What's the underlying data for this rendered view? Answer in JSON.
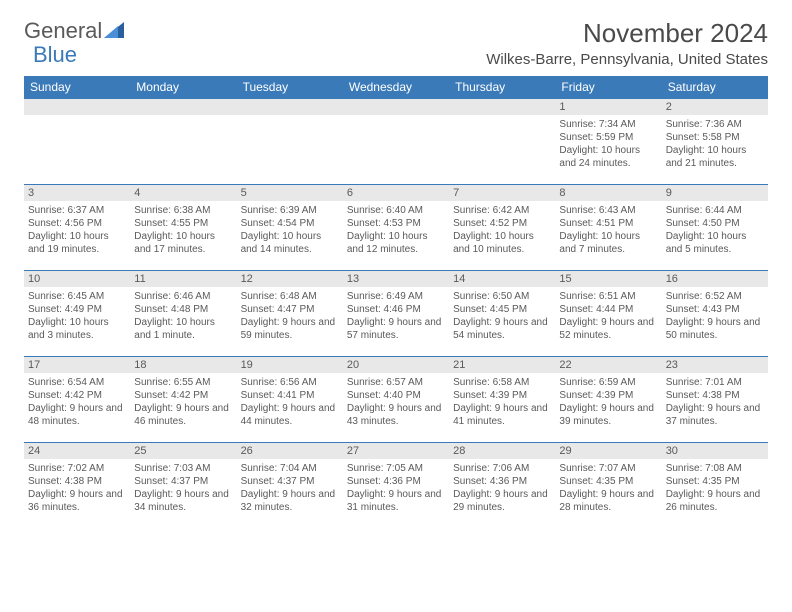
{
  "logo": {
    "text1": "General",
    "text2": "Blue"
  },
  "title": "November 2024",
  "location": "Wilkes-Barre, Pennsylvania, United States",
  "colors": {
    "header_bg": "#3b7ab8",
    "header_text": "#ffffff",
    "daynum_bg": "#e8e8e8",
    "border": "#3b7ab8",
    "text": "#5a5a5a",
    "logo_blue": "#3b7ab8"
  },
  "day_headers": [
    "Sunday",
    "Monday",
    "Tuesday",
    "Wednesday",
    "Thursday",
    "Friday",
    "Saturday"
  ],
  "weeks": [
    [
      {
        "day": "",
        "sunrise": "",
        "sunset": "",
        "daylight": ""
      },
      {
        "day": "",
        "sunrise": "",
        "sunset": "",
        "daylight": ""
      },
      {
        "day": "",
        "sunrise": "",
        "sunset": "",
        "daylight": ""
      },
      {
        "day": "",
        "sunrise": "",
        "sunset": "",
        "daylight": ""
      },
      {
        "day": "",
        "sunrise": "",
        "sunset": "",
        "daylight": ""
      },
      {
        "day": "1",
        "sunrise": "Sunrise: 7:34 AM",
        "sunset": "Sunset: 5:59 PM",
        "daylight": "Daylight: 10 hours and 24 minutes."
      },
      {
        "day": "2",
        "sunrise": "Sunrise: 7:36 AM",
        "sunset": "Sunset: 5:58 PM",
        "daylight": "Daylight: 10 hours and 21 minutes."
      }
    ],
    [
      {
        "day": "3",
        "sunrise": "Sunrise: 6:37 AM",
        "sunset": "Sunset: 4:56 PM",
        "daylight": "Daylight: 10 hours and 19 minutes."
      },
      {
        "day": "4",
        "sunrise": "Sunrise: 6:38 AM",
        "sunset": "Sunset: 4:55 PM",
        "daylight": "Daylight: 10 hours and 17 minutes."
      },
      {
        "day": "5",
        "sunrise": "Sunrise: 6:39 AM",
        "sunset": "Sunset: 4:54 PM",
        "daylight": "Daylight: 10 hours and 14 minutes."
      },
      {
        "day": "6",
        "sunrise": "Sunrise: 6:40 AM",
        "sunset": "Sunset: 4:53 PM",
        "daylight": "Daylight: 10 hours and 12 minutes."
      },
      {
        "day": "7",
        "sunrise": "Sunrise: 6:42 AM",
        "sunset": "Sunset: 4:52 PM",
        "daylight": "Daylight: 10 hours and 10 minutes."
      },
      {
        "day": "8",
        "sunrise": "Sunrise: 6:43 AM",
        "sunset": "Sunset: 4:51 PM",
        "daylight": "Daylight: 10 hours and 7 minutes."
      },
      {
        "day": "9",
        "sunrise": "Sunrise: 6:44 AM",
        "sunset": "Sunset: 4:50 PM",
        "daylight": "Daylight: 10 hours and 5 minutes."
      }
    ],
    [
      {
        "day": "10",
        "sunrise": "Sunrise: 6:45 AM",
        "sunset": "Sunset: 4:49 PM",
        "daylight": "Daylight: 10 hours and 3 minutes."
      },
      {
        "day": "11",
        "sunrise": "Sunrise: 6:46 AM",
        "sunset": "Sunset: 4:48 PM",
        "daylight": "Daylight: 10 hours and 1 minute."
      },
      {
        "day": "12",
        "sunrise": "Sunrise: 6:48 AM",
        "sunset": "Sunset: 4:47 PM",
        "daylight": "Daylight: 9 hours and 59 minutes."
      },
      {
        "day": "13",
        "sunrise": "Sunrise: 6:49 AM",
        "sunset": "Sunset: 4:46 PM",
        "daylight": "Daylight: 9 hours and 57 minutes."
      },
      {
        "day": "14",
        "sunrise": "Sunrise: 6:50 AM",
        "sunset": "Sunset: 4:45 PM",
        "daylight": "Daylight: 9 hours and 54 minutes."
      },
      {
        "day": "15",
        "sunrise": "Sunrise: 6:51 AM",
        "sunset": "Sunset: 4:44 PM",
        "daylight": "Daylight: 9 hours and 52 minutes."
      },
      {
        "day": "16",
        "sunrise": "Sunrise: 6:52 AM",
        "sunset": "Sunset: 4:43 PM",
        "daylight": "Daylight: 9 hours and 50 minutes."
      }
    ],
    [
      {
        "day": "17",
        "sunrise": "Sunrise: 6:54 AM",
        "sunset": "Sunset: 4:42 PM",
        "daylight": "Daylight: 9 hours and 48 minutes."
      },
      {
        "day": "18",
        "sunrise": "Sunrise: 6:55 AM",
        "sunset": "Sunset: 4:42 PM",
        "daylight": "Daylight: 9 hours and 46 minutes."
      },
      {
        "day": "19",
        "sunrise": "Sunrise: 6:56 AM",
        "sunset": "Sunset: 4:41 PM",
        "daylight": "Daylight: 9 hours and 44 minutes."
      },
      {
        "day": "20",
        "sunrise": "Sunrise: 6:57 AM",
        "sunset": "Sunset: 4:40 PM",
        "daylight": "Daylight: 9 hours and 43 minutes."
      },
      {
        "day": "21",
        "sunrise": "Sunrise: 6:58 AM",
        "sunset": "Sunset: 4:39 PM",
        "daylight": "Daylight: 9 hours and 41 minutes."
      },
      {
        "day": "22",
        "sunrise": "Sunrise: 6:59 AM",
        "sunset": "Sunset: 4:39 PM",
        "daylight": "Daylight: 9 hours and 39 minutes."
      },
      {
        "day": "23",
        "sunrise": "Sunrise: 7:01 AM",
        "sunset": "Sunset: 4:38 PM",
        "daylight": "Daylight: 9 hours and 37 minutes."
      }
    ],
    [
      {
        "day": "24",
        "sunrise": "Sunrise: 7:02 AM",
        "sunset": "Sunset: 4:38 PM",
        "daylight": "Daylight: 9 hours and 36 minutes."
      },
      {
        "day": "25",
        "sunrise": "Sunrise: 7:03 AM",
        "sunset": "Sunset: 4:37 PM",
        "daylight": "Daylight: 9 hours and 34 minutes."
      },
      {
        "day": "26",
        "sunrise": "Sunrise: 7:04 AM",
        "sunset": "Sunset: 4:37 PM",
        "daylight": "Daylight: 9 hours and 32 minutes."
      },
      {
        "day": "27",
        "sunrise": "Sunrise: 7:05 AM",
        "sunset": "Sunset: 4:36 PM",
        "daylight": "Daylight: 9 hours and 31 minutes."
      },
      {
        "day": "28",
        "sunrise": "Sunrise: 7:06 AM",
        "sunset": "Sunset: 4:36 PM",
        "daylight": "Daylight: 9 hours and 29 minutes."
      },
      {
        "day": "29",
        "sunrise": "Sunrise: 7:07 AM",
        "sunset": "Sunset: 4:35 PM",
        "daylight": "Daylight: 9 hours and 28 minutes."
      },
      {
        "day": "30",
        "sunrise": "Sunrise: 7:08 AM",
        "sunset": "Sunset: 4:35 PM",
        "daylight": "Daylight: 9 hours and 26 minutes."
      }
    ]
  ]
}
